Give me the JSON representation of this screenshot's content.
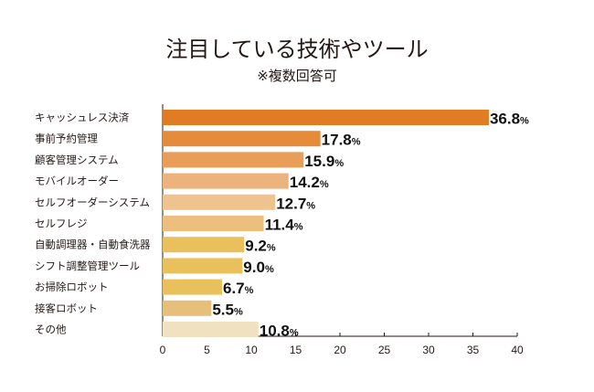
{
  "chart_data": {
    "type": "bar",
    "orientation": "horizontal",
    "title": "注目している技術やツール",
    "subtitle": "※複数回答可",
    "categories": [
      "キャッシュレス決済",
      "事前予約管理",
      "顧客管理システム",
      "モバイルオーダー",
      "セルフオーダーシステム",
      "セルフレジ",
      "自動調理器・自動食洗器",
      "シフト調整管理ツール",
      "お掃除ロボット",
      "接客ロボット",
      "その他"
    ],
    "values": [
      36.8,
      17.8,
      15.9,
      14.2,
      12.7,
      11.4,
      9.2,
      9.0,
      6.7,
      5.5,
      10.8
    ],
    "value_labels": [
      "36.8",
      "17.8",
      "15.9",
      "14.2",
      "12.7",
      "11.4",
      "9.2",
      "9.0",
      "6.7",
      "5.5",
      "10.8"
    ],
    "value_suffix": "%",
    "bar_colors": [
      "#e07d24",
      "#e48c3a",
      "#e89d58",
      "#ecb47c",
      "#efc38e",
      "#ecbf7f",
      "#e8c05c",
      "#e8c05c",
      "#e8c05c",
      "#e6c07a",
      "#f0e2c0"
    ],
    "xlim": [
      0,
      40
    ],
    "xticks": [
      0,
      5,
      10,
      15,
      20,
      25,
      30,
      35,
      40
    ],
    "xlabel": "",
    "ylabel": "",
    "grid": false
  }
}
